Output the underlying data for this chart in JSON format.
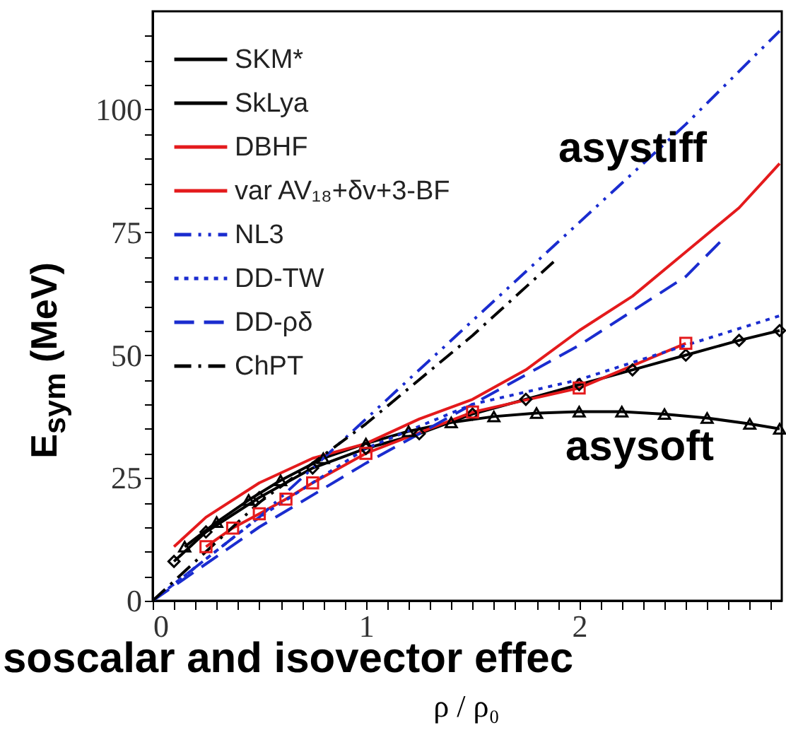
{
  "chart_data": {
    "type": "line",
    "xlabel": "ρ / ρ₀",
    "ylabel": "E$_{sym}$ (MeV)",
    "xlim": [
      0,
      2.95
    ],
    "ylim": [
      0,
      120
    ],
    "xticks": [
      0,
      {
        "value": 0.1,
        "label": null
      },
      {
        "value": 0.2,
        "label": null
      },
      {
        "value": 0.3,
        "label": null
      },
      {
        "value": 0.4,
        "label": null
      },
      {
        "value": 0.5,
        "label": null
      },
      {
        "value": 0.6,
        "label": null
      },
      {
        "value": 0.7,
        "label": null
      },
      {
        "value": 0.8,
        "label": null
      },
      {
        "value": 0.9,
        "label": null
      },
      1,
      {
        "value": 1.1,
        "label": null
      },
      {
        "value": 1.2,
        "label": null
      },
      {
        "value": 1.3,
        "label": null
      },
      {
        "value": 1.4,
        "label": null
      },
      {
        "value": 1.5,
        "label": null
      },
      {
        "value": 1.6,
        "label": null
      },
      {
        "value": 1.7,
        "label": null
      },
      {
        "value": 1.8,
        "label": null
      },
      {
        "value": 1.9,
        "label": null
      },
      2,
      {
        "value": 2.1,
        "label": null
      },
      {
        "value": 2.2,
        "label": null
      },
      {
        "value": 2.3,
        "label": null
      },
      {
        "value": 2.4,
        "label": null
      },
      {
        "value": 2.5,
        "label": null
      },
      {
        "value": 2.6,
        "label": null
      },
      {
        "value": 2.7,
        "label": null
      },
      {
        "value": 2.8,
        "label": null
      },
      {
        "value": 2.9,
        "label": null
      }
    ],
    "yticks": [
      0,
      {
        "value": 5,
        "label": null
      },
      {
        "value": 10,
        "label": null
      },
      {
        "value": 15,
        "label": null
      },
      {
        "value": 20,
        "label": null
      },
      25,
      {
        "value": 30,
        "label": null
      },
      {
        "value": 35,
        "label": null
      },
      {
        "value": 40,
        "label": null
      },
      {
        "value": 45,
        "label": null
      },
      50,
      {
        "value": 55,
        "label": null
      },
      {
        "value": 60,
        "label": null
      },
      {
        "value": 65,
        "label": null
      },
      {
        "value": 70,
        "label": null
      },
      75,
      {
        "value": 80,
        "label": null
      },
      {
        "value": 85,
        "label": null
      },
      {
        "value": 90,
        "label": null
      },
      {
        "value": 95,
        "label": null
      },
      100,
      {
        "value": 105,
        "label": null
      },
      {
        "value": 110,
        "label": null
      },
      {
        "value": 115,
        "label": null
      }
    ],
    "legend": "top left",
    "series": [
      {
        "name": "SKM*",
        "color": "#000000",
        "marker": "triangle",
        "line_style": "solid",
        "x": [
          0.15,
          0.3,
          0.45,
          0.6,
          0.8,
          1,
          1.2,
          1.4,
          1.6,
          1.8,
          2,
          2.2,
          2.4,
          2.6,
          2.8,
          2.94
        ],
        "values": [
          11,
          16,
          20.5,
          24.5,
          29,
          32,
          34.5,
          36.3,
          37.5,
          38.2,
          38.5,
          38.5,
          38,
          37.2,
          36,
          35
        ]
      },
      {
        "name": "SkLya",
        "color": "#000000",
        "marker": "diamond",
        "line_style": "solid",
        "x": [
          0.1,
          0.25,
          0.5,
          0.75,
          1,
          1.25,
          1.5,
          1.75,
          2,
          2.25,
          2.5,
          2.75,
          2.94
        ],
        "values": [
          8,
          14,
          21,
          27,
          31,
          34,
          38,
          41,
          44,
          47,
          50,
          53,
          55
        ]
      },
      {
        "name": "DBHF",
        "color": "#e41a1c",
        "line_style": "solid",
        "x": [
          0.1,
          0.25,
          0.5,
          0.75,
          1,
          1.25,
          1.5,
          1.75,
          2,
          2.25,
          2.5,
          2.75,
          2.94
        ],
        "values": [
          11,
          17,
          24,
          29,
          32,
          37,
          41,
          47,
          55,
          62,
          71,
          80,
          89
        ]
      },
      {
        "name": "var AV₁₈+δv+3-BF",
        "color": "#e41a1c",
        "marker": "square",
        "line_style": "solid",
        "x": [
          0.25,
          0.375,
          0.5,
          0.625,
          0.75,
          1,
          1.5,
          2,
          2.5
        ],
        "values": [
          11,
          14.8,
          17.7,
          20.7,
          24,
          30,
          38.4,
          43.3,
          52.4
        ]
      },
      {
        "name": "NL3",
        "color": "#1a2ccf",
        "line_style": "dashdotdot",
        "x": [
          0,
          0.5,
          1,
          1.5,
          2,
          2.5,
          2.94
        ],
        "values": [
          0,
          17,
          37,
          57,
          77,
          97,
          116
        ]
      },
      {
        "name": "DD-TW",
        "color": "#1a2ccf",
        "line_style": "dotted",
        "x": [
          0,
          0.5,
          1,
          1.5,
          2,
          2.5,
          2.94
        ],
        "values": [
          0,
          17,
          31,
          40,
          45,
          52,
          58
        ]
      },
      {
        "name": "DD-ρδ",
        "color": "#1a2ccf",
        "line_style": "dashed",
        "x": [
          0,
          0.5,
          1,
          1.5,
          2,
          2.5,
          2.66
        ],
        "values": [
          0,
          15,
          28,
          40,
          52,
          66,
          73
        ]
      },
      {
        "name": "ChPT",
        "color": "#000000",
        "line_style": "dashdot",
        "x": [
          0,
          0.5,
          1,
          1.5,
          1.88
        ],
        "values": [
          0,
          20,
          36,
          54,
          69
        ]
      }
    ],
    "annotations": [
      "asystiff",
      "asysoft",
      "soscalar and isovector effec"
    ]
  }
}
